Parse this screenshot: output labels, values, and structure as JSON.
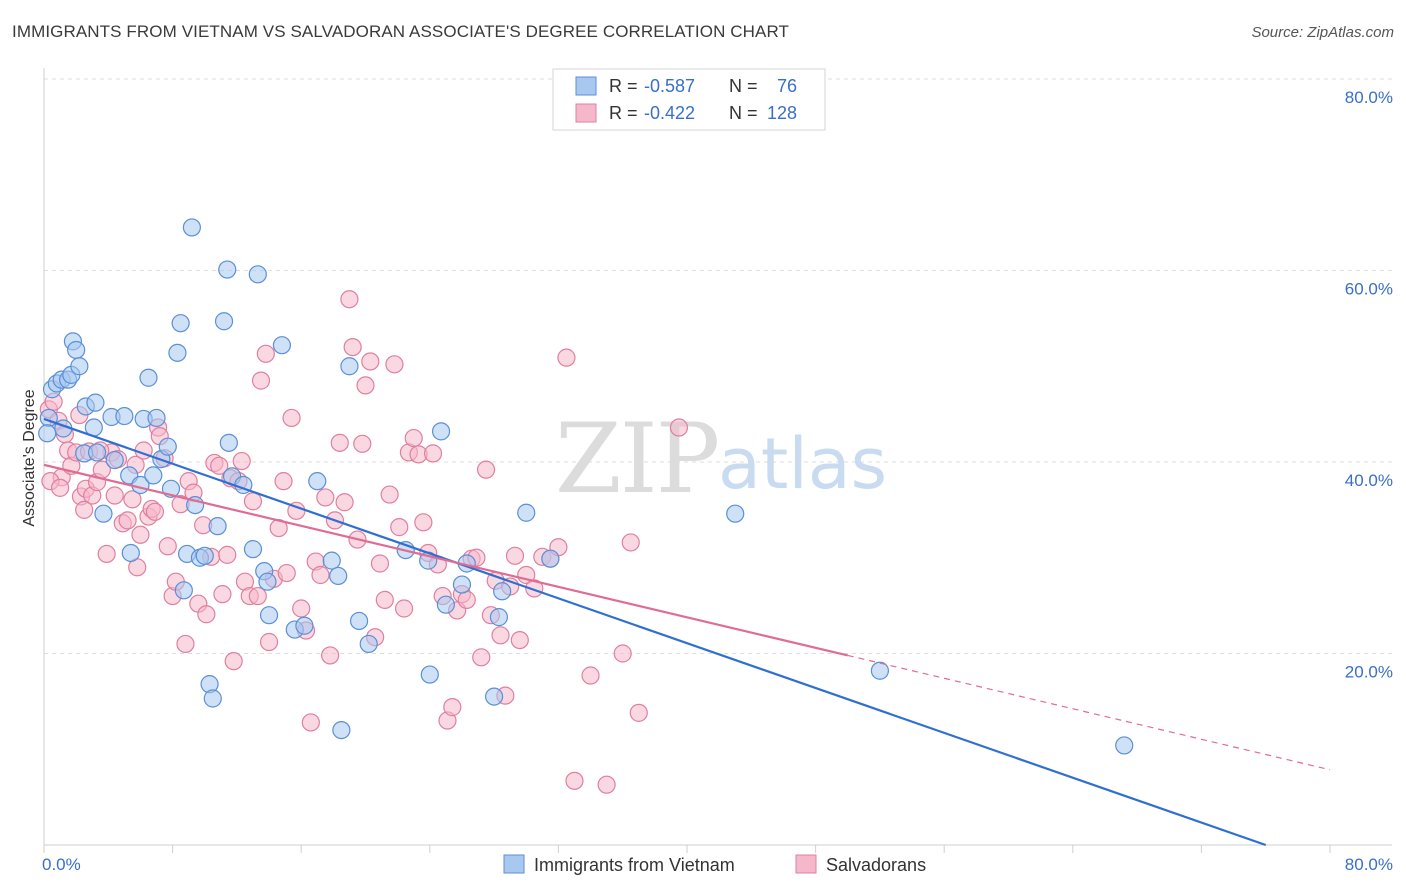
{
  "title": "IMMIGRANTS FROM VIETNAM VS SALVADORAN ASSOCIATE'S DEGREE CORRELATION CHART",
  "source": "Source: ZipAtlas.com",
  "watermark": {
    "zip": "ZIP",
    "atlas": "atlas"
  },
  "colors": {
    "blue": "#a8c8f0",
    "blue_stroke": "#5b8fd6",
    "blue_line": "#2f6fd1",
    "pink": "#f5b8cb",
    "pink_stroke": "#e07fa0",
    "pink_line": "#e06c93",
    "tick": "#3a6fc9"
  },
  "legend": {
    "rows": [
      {
        "r_label": "R = ",
        "r_value": "-0.587",
        "n_label": "N = ",
        "n_value": " 76"
      },
      {
        "r_label": "R = ",
        "r_value": "-0.422",
        "n_label": "N = ",
        "n_value": "128"
      }
    ]
  },
  "bottom_legend": [
    "Immigrants from Vietnam",
    "Salvadorans"
  ],
  "chart_data": {
    "type": "scatter",
    "xlabel": "",
    "ylabel": "Associate's Degree",
    "xlim": [
      0,
      80
    ],
    "ylim": [
      0,
      80
    ],
    "x_tick_labels": [
      "0.0%",
      "80.0%"
    ],
    "y_tick_labels": [
      "20.0%",
      "40.0%",
      "60.0%",
      "80.0%"
    ],
    "y_ticks": [
      20,
      40,
      60,
      80
    ],
    "grid": true,
    "legend_position": "top-center",
    "series": [
      {
        "name": "Immigrants from Vietnam",
        "trend": {
          "x": [
            0,
            76
          ],
          "y": [
            44.5,
            0
          ]
        },
        "points": [
          [
            0.3,
            44.6
          ],
          [
            0.5,
            47.6
          ],
          [
            0.8,
            48.2
          ],
          [
            1.1,
            48.6
          ],
          [
            1.2,
            43.5
          ],
          [
            1.5,
            48.6
          ],
          [
            1.7,
            49.1
          ],
          [
            1.8,
            52.6
          ],
          [
            2.0,
            51.7
          ],
          [
            2.2,
            50.0
          ],
          [
            2.5,
            40.9
          ],
          [
            2.6,
            45.8
          ],
          [
            3.1,
            43.6
          ],
          [
            3.2,
            46.2
          ],
          [
            3.3,
            41.0
          ],
          [
            3.7,
            34.6
          ],
          [
            4.2,
            44.7
          ],
          [
            4.4,
            40.2
          ],
          [
            5.0,
            44.8
          ],
          [
            5.3,
            38.6
          ],
          [
            5.4,
            30.5
          ],
          [
            6.0,
            37.6
          ],
          [
            6.2,
            44.5
          ],
          [
            6.5,
            48.8
          ],
          [
            6.8,
            38.6
          ],
          [
            7.0,
            44.6
          ],
          [
            7.3,
            40.3
          ],
          [
            7.7,
            41.6
          ],
          [
            7.9,
            37.2
          ],
          [
            8.3,
            51.4
          ],
          [
            8.5,
            54.5
          ],
          [
            8.7,
            26.6
          ],
          [
            8.9,
            30.4
          ],
          [
            9.2,
            64.5
          ],
          [
            9.4,
            35.5
          ],
          [
            9.7,
            30.0
          ],
          [
            10.0,
            30.2
          ],
          [
            10.3,
            16.8
          ],
          [
            10.5,
            15.3
          ],
          [
            10.8,
            33.3
          ],
          [
            11.2,
            54.7
          ],
          [
            11.4,
            60.1
          ],
          [
            11.5,
            42.0
          ],
          [
            11.7,
            38.5
          ],
          [
            12.4,
            37.6
          ],
          [
            13.0,
            30.9
          ],
          [
            13.3,
            59.6
          ],
          [
            13.7,
            28.6
          ],
          [
            13.9,
            27.5
          ],
          [
            14.0,
            24.0
          ],
          [
            14.8,
            52.2
          ],
          [
            15.6,
            22.5
          ],
          [
            16.2,
            22.9
          ],
          [
            17.0,
            38.0
          ],
          [
            17.9,
            29.7
          ],
          [
            18.3,
            28.1
          ],
          [
            18.5,
            12.0
          ],
          [
            19.0,
            50.0
          ],
          [
            19.6,
            23.4
          ],
          [
            20.2,
            21.0
          ],
          [
            22.5,
            30.8
          ],
          [
            23.9,
            29.7
          ],
          [
            24.0,
            17.8
          ],
          [
            24.7,
            43.2
          ],
          [
            25.0,
            25.1
          ],
          [
            26.0,
            27.2
          ],
          [
            26.3,
            29.4
          ],
          [
            28.0,
            15.5
          ],
          [
            28.3,
            23.8
          ],
          [
            28.5,
            26.5
          ],
          [
            30.0,
            34.7
          ],
          [
            31.5,
            29.9
          ],
          [
            43.0,
            34.6
          ],
          [
            52.0,
            18.2
          ],
          [
            67.2,
            10.4
          ],
          [
            0.2,
            43.0
          ]
        ]
      },
      {
        "name": "Salvadorans",
        "trend": {
          "x": [
            0,
            50
          ],
          "y": [
            39.7,
            19.8
          ]
        },
        "points": [
          [
            0.3,
            45.5
          ],
          [
            0.6,
            46.3
          ],
          [
            0.9,
            44.3
          ],
          [
            1.1,
            38.4
          ],
          [
            1.3,
            42.9
          ],
          [
            1.5,
            41.2
          ],
          [
            1.7,
            39.6
          ],
          [
            2.0,
            41.0
          ],
          [
            2.2,
            44.9
          ],
          [
            2.3,
            36.4
          ],
          [
            2.6,
            37.2
          ],
          [
            2.8,
            41.1
          ],
          [
            3.0,
            36.5
          ],
          [
            3.3,
            37.9
          ],
          [
            3.6,
            39.2
          ],
          [
            3.9,
            30.4
          ],
          [
            4.2,
            41.0
          ],
          [
            4.4,
            36.5
          ],
          [
            4.6,
            40.3
          ],
          [
            4.9,
            33.6
          ],
          [
            5.2,
            33.9
          ],
          [
            5.5,
            36.1
          ],
          [
            5.7,
            39.7
          ],
          [
            6.0,
            32.4
          ],
          [
            6.2,
            41.2
          ],
          [
            6.5,
            34.3
          ],
          [
            6.7,
            35.1
          ],
          [
            6.9,
            34.8
          ],
          [
            7.1,
            43.6
          ],
          [
            7.2,
            42.7
          ],
          [
            7.5,
            40.4
          ],
          [
            7.7,
            31.2
          ],
          [
            8.0,
            26.0
          ],
          [
            8.2,
            27.5
          ],
          [
            8.5,
            35.6
          ],
          [
            8.8,
            21.0
          ],
          [
            9.0,
            38.0
          ],
          [
            9.3,
            36.8
          ],
          [
            9.6,
            25.2
          ],
          [
            9.9,
            33.4
          ],
          [
            10.1,
            24.1
          ],
          [
            10.4,
            30.1
          ],
          [
            10.6,
            39.9
          ],
          [
            10.9,
            39.6
          ],
          [
            11.1,
            26.2
          ],
          [
            11.4,
            30.3
          ],
          [
            11.6,
            38.3
          ],
          [
            11.8,
            19.2
          ],
          [
            12.1,
            38.0
          ],
          [
            12.3,
            40.1
          ],
          [
            12.5,
            27.5
          ],
          [
            12.8,
            26.0
          ],
          [
            13.0,
            35.9
          ],
          [
            13.3,
            26.0
          ],
          [
            13.5,
            48.5
          ],
          [
            13.8,
            51.3
          ],
          [
            14.0,
            21.2
          ],
          [
            14.3,
            27.8
          ],
          [
            14.6,
            33.1
          ],
          [
            14.9,
            38.0
          ],
          [
            15.1,
            28.4
          ],
          [
            15.4,
            44.6
          ],
          [
            15.7,
            34.9
          ],
          [
            16.0,
            24.7
          ],
          [
            16.3,
            22.4
          ],
          [
            16.6,
            12.8
          ],
          [
            16.9,
            29.6
          ],
          [
            17.2,
            28.2
          ],
          [
            17.5,
            36.3
          ],
          [
            17.8,
            19.8
          ],
          [
            18.1,
            33.9
          ],
          [
            18.4,
            42.0
          ],
          [
            18.7,
            35.8
          ],
          [
            19.0,
            57.0
          ],
          [
            19.2,
            52.0
          ],
          [
            19.5,
            31.9
          ],
          [
            19.8,
            41.9
          ],
          [
            20.0,
            48.0
          ],
          [
            20.3,
            50.5
          ],
          [
            20.6,
            21.7
          ],
          [
            20.9,
            29.4
          ],
          [
            21.2,
            25.6
          ],
          [
            21.5,
            36.6
          ],
          [
            21.8,
            50.2
          ],
          [
            22.1,
            33.2
          ],
          [
            22.4,
            24.7
          ],
          [
            22.7,
            41.0
          ],
          [
            23.0,
            42.5
          ],
          [
            23.3,
            40.8
          ],
          [
            23.6,
            33.7
          ],
          [
            23.9,
            30.5
          ],
          [
            24.2,
            40.9
          ],
          [
            24.5,
            29.3
          ],
          [
            24.8,
            26.0
          ],
          [
            25.1,
            13.0
          ],
          [
            25.4,
            14.4
          ],
          [
            25.7,
            24.5
          ],
          [
            26.0,
            26.2
          ],
          [
            26.3,
            25.6
          ],
          [
            26.6,
            29.9
          ],
          [
            26.9,
            30.0
          ],
          [
            27.2,
            19.6
          ],
          [
            27.5,
            39.2
          ],
          [
            27.8,
            24.0
          ],
          [
            28.1,
            27.6
          ],
          [
            28.4,
            21.9
          ],
          [
            28.7,
            15.6
          ],
          [
            29.0,
            27.0
          ],
          [
            29.3,
            30.2
          ],
          [
            29.6,
            21.4
          ],
          [
            30.0,
            28.2
          ],
          [
            30.5,
            26.8
          ],
          [
            31.0,
            30.1
          ],
          [
            31.5,
            29.9
          ],
          [
            32.0,
            31.1
          ],
          [
            32.5,
            50.9
          ],
          [
            33.0,
            6.7
          ],
          [
            34.0,
            17.7
          ],
          [
            35.0,
            6.3
          ],
          [
            36.0,
            20.0
          ],
          [
            36.5,
            31.6
          ],
          [
            37.0,
            13.8
          ],
          [
            39.5,
            43.6
          ],
          [
            0.4,
            38.0
          ],
          [
            1.0,
            37.3
          ],
          [
            2.5,
            35.0
          ],
          [
            3.5,
            41.2
          ],
          [
            5.8,
            29.0
          ]
        ]
      }
    ]
  }
}
